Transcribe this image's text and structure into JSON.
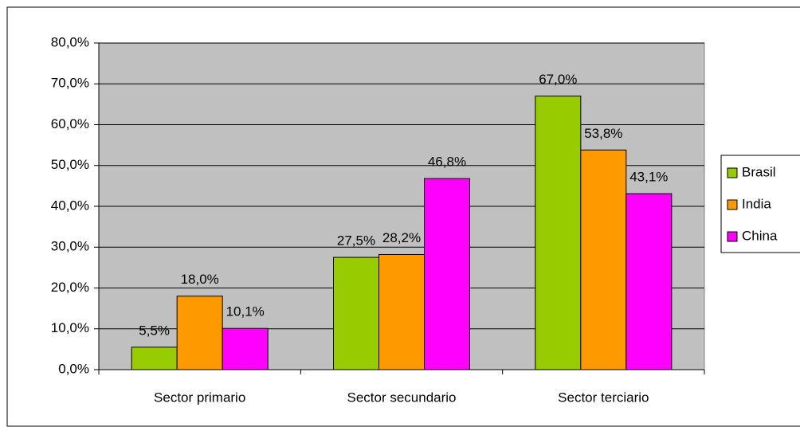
{
  "chart_data": {
    "type": "bar",
    "categories": [
      "Sector primario",
      "Sector secundario",
      "Sector terciario"
    ],
    "series": [
      {
        "name": "Brasil",
        "color": "#99cc00",
        "values": [
          5.5,
          27.5,
          67.0
        ],
        "value_labels": [
          "5,5%",
          "27,5%",
          "67,0%"
        ]
      },
      {
        "name": "India",
        "color": "#ff9900",
        "values": [
          18.0,
          28.2,
          53.8
        ],
        "value_labels": [
          "18,0%",
          "28,2%",
          "53,8%"
        ]
      },
      {
        "name": "China",
        "color": "#ff00ff",
        "values": [
          10.1,
          46.8,
          43.1
        ],
        "value_labels": [
          "10,1%",
          "46,8%",
          "43,1%"
        ]
      }
    ],
    "ylim": [
      0,
      80
    ],
    "yticks": [
      {
        "value": 0,
        "label": "0,0%"
      },
      {
        "value": 10,
        "label": "10,0%"
      },
      {
        "value": 20,
        "label": "20,0%"
      },
      {
        "value": 30,
        "label": "30,0%"
      },
      {
        "value": 40,
        "label": "40,0%"
      },
      {
        "value": 50,
        "label": "50,0%"
      },
      {
        "value": 60,
        "label": "60,0%"
      },
      {
        "value": 70,
        "label": "70,0%"
      },
      {
        "value": 80,
        "label": "80,0%"
      }
    ],
    "grid": true,
    "legend": "right",
    "plot_background": "#c0c0c0"
  }
}
